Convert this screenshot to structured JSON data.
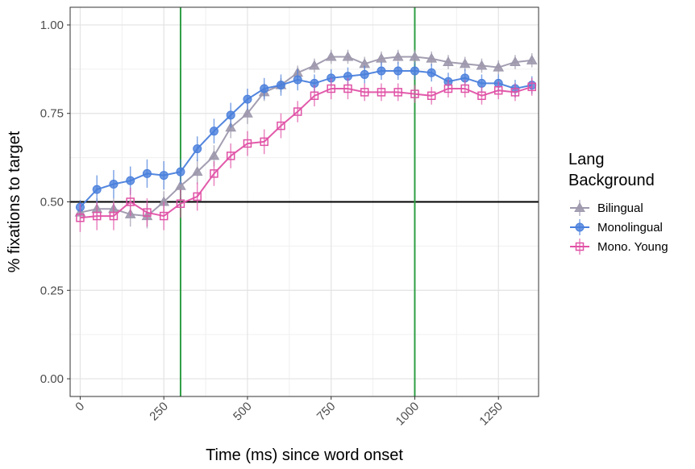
{
  "chart_data": {
    "type": "line",
    "xlabel": "Time (ms) since word onset",
    "ylabel": "% fixations to target",
    "xlim": [
      -30,
      1370
    ],
    "ylim": [
      -0.05,
      1.05
    ],
    "x_ticks": [
      0,
      250,
      500,
      750,
      1000,
      1250
    ],
    "x_tick_labels": [
      "0",
      "250",
      "500",
      "750",
      "1000",
      "1250"
    ],
    "y_ticks": [
      0,
      0.25,
      0.5,
      0.75,
      1.0
    ],
    "y_tick_labels": [
      "0.00",
      "0.25",
      "0.50",
      "0.75",
      "1.00"
    ],
    "grid": true,
    "hline": 0.5,
    "vlines": [
      300,
      1000
    ],
    "vline_color": "#2e9e44",
    "x": [
      0,
      50,
      100,
      150,
      200,
      250,
      300,
      350,
      400,
      450,
      500,
      550,
      600,
      650,
      700,
      750,
      800,
      850,
      900,
      950,
      1000,
      1050,
      1100,
      1150,
      1200,
      1250,
      1300,
      1350
    ],
    "legend": {
      "title": "Lang\nBackground",
      "placement": "right"
    },
    "series": [
      {
        "name": "Bilingual",
        "color": "#9e98ad",
        "marker": "triangle",
        "values": [
          0.47,
          0.48,
          0.48,
          0.465,
          0.46,
          0.5,
          0.545,
          0.585,
          0.63,
          0.71,
          0.75,
          0.81,
          0.83,
          0.865,
          0.885,
          0.91,
          0.91,
          0.89,
          0.905,
          0.91,
          0.91,
          0.905,
          0.895,
          0.89,
          0.885,
          0.88,
          0.895,
          0.9
        ],
        "errors": [
          0.025,
          0.03,
          0.03,
          0.035,
          0.035,
          0.03,
          0.035,
          0.035,
          0.03,
          0.03,
          0.03,
          0.025,
          0.02,
          0.02,
          0.02,
          0.02,
          0.02,
          0.02,
          0.02,
          0.02,
          0.02,
          0.02,
          0.02,
          0.02,
          0.02,
          0.02,
          0.02,
          0.02
        ]
      },
      {
        "name": "Monolingual",
        "color": "#4a7fdc",
        "marker": "circle",
        "values": [
          0.485,
          0.535,
          0.55,
          0.56,
          0.58,
          0.575,
          0.585,
          0.65,
          0.7,
          0.745,
          0.79,
          0.82,
          0.83,
          0.845,
          0.835,
          0.85,
          0.855,
          0.86,
          0.87,
          0.87,
          0.87,
          0.865,
          0.84,
          0.85,
          0.835,
          0.835,
          0.82,
          0.83
        ],
        "errors": [
          0.02,
          0.04,
          0.04,
          0.04,
          0.04,
          0.04,
          0.035,
          0.035,
          0.035,
          0.035,
          0.03,
          0.03,
          0.03,
          0.03,
          0.025,
          0.025,
          0.025,
          0.025,
          0.025,
          0.025,
          0.025,
          0.025,
          0.025,
          0.025,
          0.025,
          0.025,
          0.025,
          0.025
        ]
      },
      {
        "name": "Mono. Young",
        "color": "#e052a6",
        "marker": "square",
        "values": [
          0.455,
          0.46,
          0.46,
          0.5,
          0.47,
          0.46,
          0.495,
          0.515,
          0.58,
          0.63,
          0.665,
          0.67,
          0.715,
          0.755,
          0.8,
          0.82,
          0.82,
          0.81,
          0.81,
          0.81,
          0.805,
          0.8,
          0.82,
          0.82,
          0.8,
          0.815,
          0.81,
          0.825
        ],
        "errors": [
          0.04,
          0.04,
          0.04,
          0.04,
          0.04,
          0.04,
          0.04,
          0.04,
          0.035,
          0.035,
          0.035,
          0.035,
          0.035,
          0.03,
          0.03,
          0.03,
          0.03,
          0.025,
          0.025,
          0.025,
          0.025,
          0.025,
          0.025,
          0.025,
          0.025,
          0.025,
          0.025,
          0.025
        ]
      }
    ]
  }
}
